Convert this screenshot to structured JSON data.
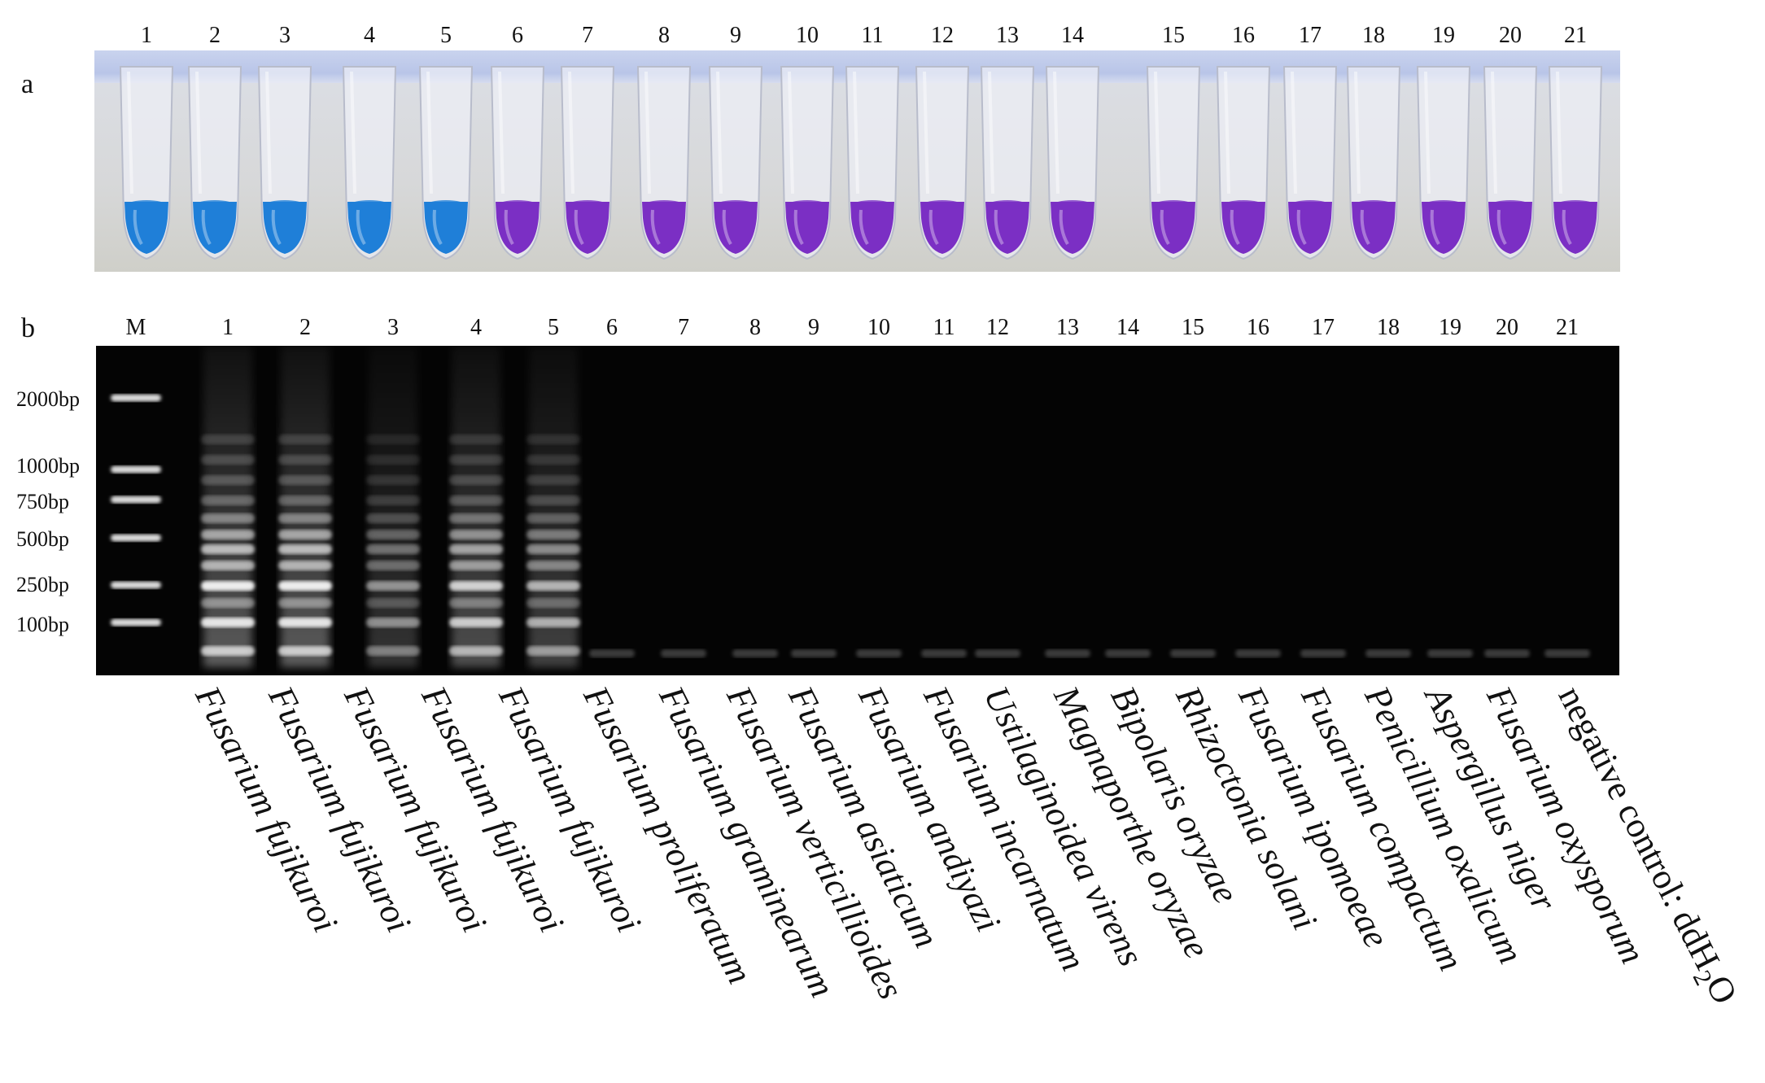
{
  "panel_a": {
    "letter": "a",
    "lane_numbers": [
      "1",
      "2",
      "3",
      "4",
      "5",
      "6",
      "7",
      "8",
      "9",
      "10",
      "11",
      "12",
      "13",
      "14",
      "15",
      "16",
      "17",
      "18",
      "19",
      "20",
      "21"
    ],
    "tube_colors": [
      "blue",
      "blue",
      "blue",
      "blue",
      "blue",
      "purple",
      "purple",
      "purple",
      "purple",
      "purple",
      "purple",
      "purple",
      "purple",
      "purple",
      "purple",
      "purple",
      "purple",
      "purple",
      "purple",
      "purple",
      "purple"
    ],
    "colors": {
      "blue": "#1f7fd8",
      "purple": "#7b2fc4"
    }
  },
  "panel_b": {
    "letter": "b",
    "marker_label": "M",
    "lane_numbers": [
      "1",
      "2",
      "3",
      "4",
      "5",
      "6",
      "7",
      "8",
      "9",
      "10",
      "11",
      "12",
      "13",
      "14",
      "15",
      "16",
      "17",
      "18",
      "19",
      "20",
      "21"
    ],
    "ladder": [
      "2000bp",
      "1000bp",
      "750bp",
      "500bp",
      "250bp",
      "100bp"
    ],
    "positive_lanes": [
      "1",
      "2",
      "3",
      "4",
      "5"
    ],
    "species": [
      "Fusarium fujikuroi",
      "Fusarium fujikuroi",
      "Fusarium fujikuroi",
      "Fusarium fujikuroi",
      "Fusarium fujikuroi",
      "Fusarium proliferatum",
      "Fusarium graminearum",
      "Fusarium verticillioides",
      "Fusarium asiaticum",
      "Fusarium andiyazi",
      "Fusarium incarnatum",
      "Ustilaginoidea virens",
      "Magnaporthe oryzae",
      "Bipolaris oryzae",
      "Rhizoctonia solani",
      "Fusarium ipomoeae",
      "Fusarium compactum",
      "Penicillium oxalicum",
      "Aspergillus niger",
      "Fusarium oxysporum"
    ],
    "negative_control": {
      "prefix": "negative control: ddH",
      "sub": "2",
      "suffix": "O"
    }
  }
}
